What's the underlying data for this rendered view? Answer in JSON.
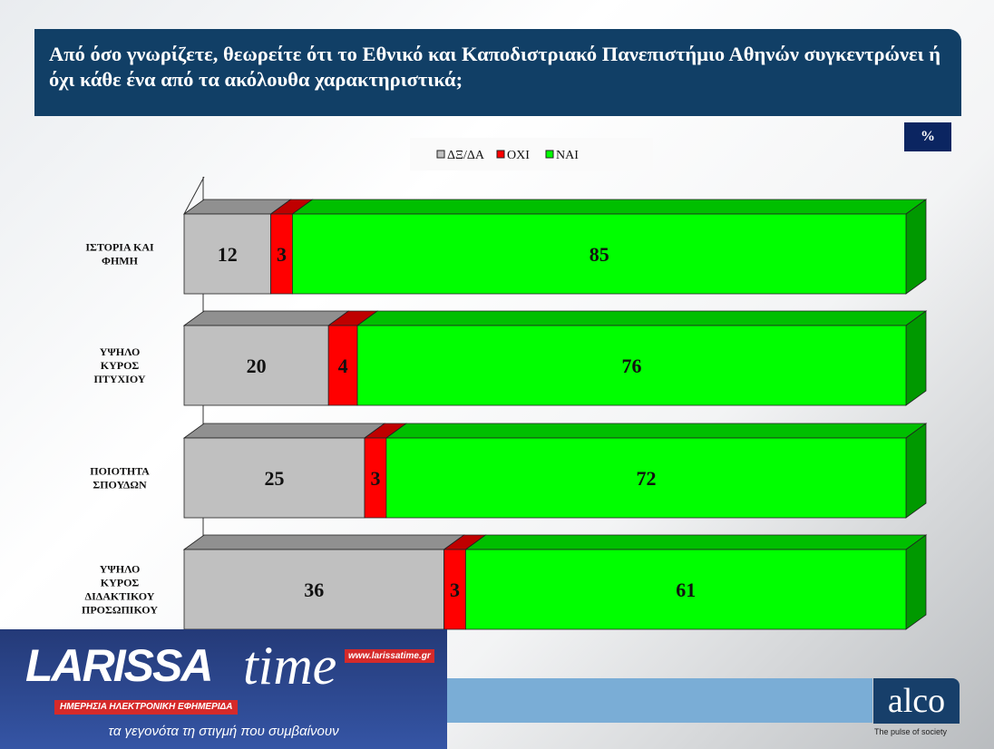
{
  "title": "Από όσο γνωρίζετε, θεωρείτε ότι το Εθνικό και Καποδιστριακό Πανεπιστήμιο Αθηνών συγκεντρώνει ή όχι κάθε ένα από τα ακόλουθα χαρακτηριστικά;",
  "unit_badge": "%",
  "chart_data": {
    "type": "bar",
    "orientation": "horizontal",
    "stacked": true,
    "three_d": true,
    "categories": [
      [
        "ΙΣΤΟΡΙΑ ΚΑΙ",
        "ΦΗΜΗ"
      ],
      [
        "ΥΨΗΛΟ",
        "ΚΥΡΟΣ",
        "ΠΤΥΧΙΟΥ"
      ],
      [
        "ΠΟΙΟΤΗΤΑ",
        "ΣΠΟΥΔΩΝ"
      ],
      [
        "ΥΨΗΛΟ",
        "ΚΥΡΟΣ",
        "ΔΙΔΑΚΤΙΚΟΥ",
        "ΠΡΟΣΩΠΙΚΟΥ"
      ]
    ],
    "series": [
      {
        "name": "ΔΞ/ΔΑ",
        "color": "#c0c0c0",
        "values": [
          12,
          20,
          25,
          36
        ]
      },
      {
        "name": "ΟΧΙ",
        "color": "#ff0000",
        "values": [
          3,
          4,
          3,
          3
        ]
      },
      {
        "name": "ΝΑΙ",
        "color": "#00ff00",
        "values": [
          85,
          76,
          72,
          61
        ]
      }
    ],
    "xlim": [
      0,
      100
    ],
    "legend": "top",
    "grid": false
  },
  "footer": {
    "brand_left": "LARISSA",
    "brand_left_time": "time",
    "url": "www.larissatime.gr",
    "subtitle": "ΗΜΕΡΗΣΙΑ ΗΛΕΚΤΡΟΝΙΚΗ ΕΦΗΜΕΡΙΔΑ",
    "tagline": "τα γεγονότα τη στιγμή που συμβαίνουν",
    "brand_right": "alco",
    "brand_right_tagline": "The pulse of society"
  }
}
